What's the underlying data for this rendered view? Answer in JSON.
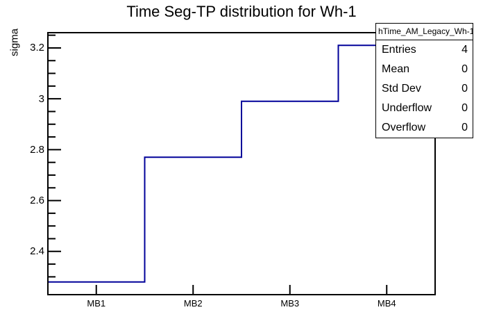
{
  "chart_data": {
    "type": "line",
    "subtype": "step-histogram",
    "title": "Time Seg-TP distribution for Wh-1",
    "xlabel": "",
    "ylabel": "sigma",
    "categories": [
      "MB1",
      "MB2",
      "MB3",
      "MB4"
    ],
    "values": [
      2.28,
      2.77,
      2.99,
      3.21
    ],
    "ylim": [
      2.23,
      3.26
    ],
    "y_major_ticks": [
      2.4,
      2.6,
      2.8,
      3.0,
      3.2
    ],
    "y_tick_labels": [
      "2.4",
      "2.6",
      "2.8",
      "3",
      "3.2"
    ],
    "y_minor_step": 0.05,
    "grid": false,
    "legend_position": "none",
    "line_color": "#000099",
    "axis_color": "#000000",
    "background_color": "#ffffff"
  },
  "stats_box": {
    "header": "hTime_AM_Legacy_Wh-1",
    "rows": [
      {
        "label": "Entries",
        "value": "4"
      },
      {
        "label": "Mean",
        "value": "0"
      },
      {
        "label": "Std Dev",
        "value": "0"
      },
      {
        "label": "Underflow",
        "value": "0"
      },
      {
        "label": "Overflow",
        "value": "0"
      }
    ]
  }
}
